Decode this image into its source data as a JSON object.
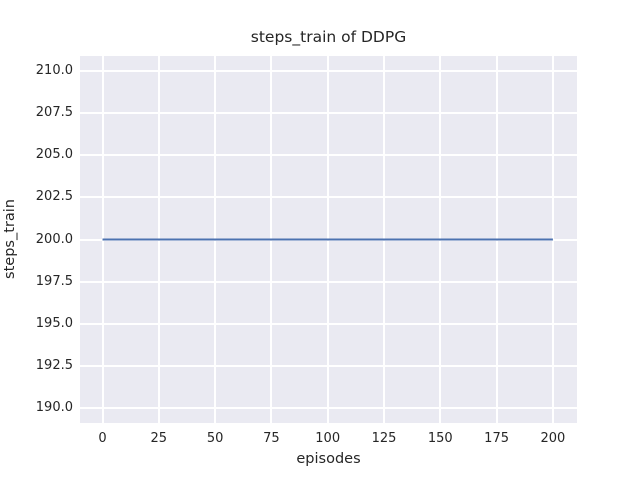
{
  "chart_data": {
    "type": "line",
    "title": "steps_train of DDPG",
    "xlabel": "episodes",
    "ylabel": "steps_train",
    "xlim": [
      -10,
      210.7
    ],
    "ylim": [
      189.1,
      210.9
    ],
    "xticks": [
      0,
      25,
      50,
      75,
      100,
      125,
      150,
      175,
      200
    ],
    "xtick_labels": [
      "0",
      "25",
      "50",
      "75",
      "100",
      "125",
      "150",
      "175",
      "200"
    ],
    "yticks": [
      190,
      192.5,
      195,
      197.5,
      200,
      202.5,
      205,
      207.5,
      210
    ],
    "ytick_labels": [
      "190.0",
      "192.5",
      "195.0",
      "197.5",
      "200.0",
      "202.5",
      "205.0",
      "207.5",
      "210.0"
    ],
    "grid": true,
    "legend": null,
    "series": [
      {
        "name": "steps_train",
        "color": "#4C72B0",
        "x": [
          0,
          200
        ],
        "y": [
          200,
          200
        ],
        "note": "constant line at 200 steps for every episode"
      }
    ],
    "style": {
      "fig_bg": "#FFFFFF",
      "plot_bg": "#EAEAF2",
      "grid_color": "#FFFFFF",
      "text_color": "#262626",
      "line_width": 2
    }
  }
}
